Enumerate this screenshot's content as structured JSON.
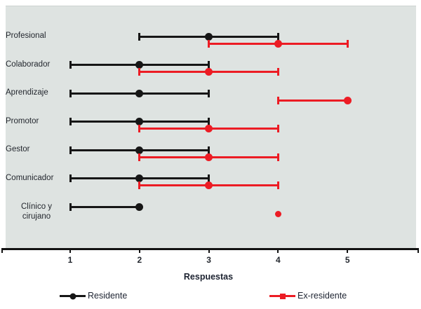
{
  "chart_data": {
    "type": "dot-range",
    "xlabel": "Respuestas",
    "x_ticks": [
      1,
      2,
      3,
      4,
      5
    ],
    "xlim": [
      0,
      6
    ],
    "grid": false,
    "plot_background": "#dee3e1",
    "categories": [
      "Profesional",
      "Colaborador",
      "Aprendizaje",
      "Promotor",
      "Gestor",
      "Comunicador",
      "Clínico y\ncirujano"
    ],
    "series": [
      {
        "name": "Residente",
        "color": "#161616",
        "marker": "circle",
        "ranges": [
          {
            "low": 2,
            "high": 4,
            "value": 3
          },
          {
            "low": 1,
            "high": 3,
            "value": 2
          },
          {
            "low": 1,
            "high": 3,
            "value": 2
          },
          {
            "low": 1,
            "high": 3,
            "value": 2
          },
          {
            "low": 1,
            "high": 3,
            "value": 2
          },
          {
            "low": 1,
            "high": 3,
            "value": 2
          },
          {
            "low": 1,
            "high": 2,
            "value": 2
          }
        ]
      },
      {
        "name": "Ex-residente",
        "color": "#ec1c24",
        "marker": "circle",
        "ranges": [
          {
            "low": 3,
            "high": 5,
            "value": 4
          },
          {
            "low": 2,
            "high": 4,
            "value": 3
          },
          {
            "low": 4,
            "high": 5,
            "value": 5
          },
          {
            "low": 2,
            "high": 4,
            "value": 3
          },
          {
            "low": 2,
            "high": 4,
            "value": 3
          },
          {
            "low": 2,
            "high": 4,
            "value": 3
          },
          {
            "low": 4,
            "high": 4,
            "value": 4
          }
        ]
      }
    ]
  },
  "legend": {
    "items": [
      {
        "label": "Residente",
        "color": "#161616",
        "marker": "circle"
      },
      {
        "label": "Ex-residente",
        "color": "#ec1c24",
        "marker": "square"
      }
    ]
  }
}
